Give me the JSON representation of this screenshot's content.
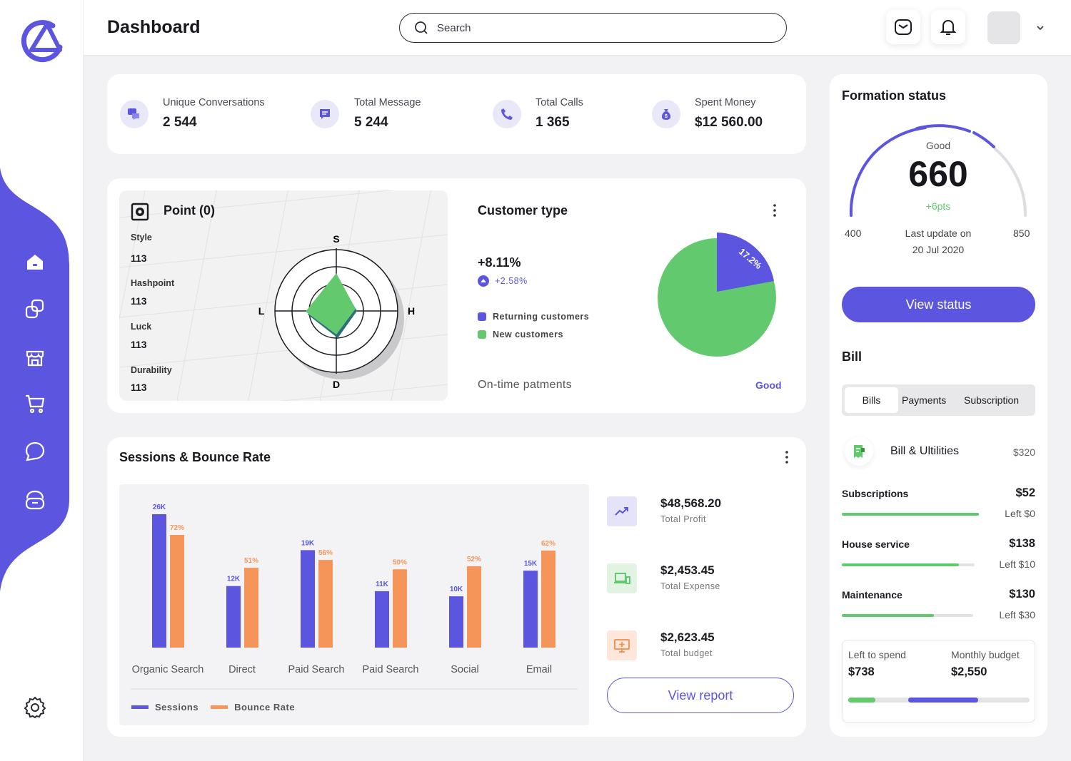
{
  "header": {
    "title": "Dashboard",
    "search_placeholder": "Search"
  },
  "stats": [
    {
      "label": "Unique Conversations",
      "value": "2 544",
      "icon": "chat-bubbles-icon"
    },
    {
      "label": "Total Message",
      "value": "5 244",
      "icon": "message-icon"
    },
    {
      "label": "Total Calls",
      "value": "1 365",
      "icon": "phone-icon"
    },
    {
      "label": "Spent Money",
      "value": "$12 560.00",
      "icon": "money-bag-icon"
    }
  ],
  "point": {
    "title": "Point (0)",
    "attributes": [
      {
        "label": "Style",
        "value": "113"
      },
      {
        "label": "Hashpoint",
        "value": "113"
      },
      {
        "label": "Luck",
        "value": "113"
      },
      {
        "label": "Durability",
        "value": "113"
      }
    ],
    "axes": {
      "top": "S",
      "right": "H",
      "bottom": "D",
      "left": "L"
    }
  },
  "customer_type": {
    "title": "Customer type",
    "growth": "+8.11%",
    "delta": "+2.58%",
    "legend": [
      "Returning customers",
      "New customers"
    ],
    "footer_label": "On-time patments",
    "footer_status": "Good",
    "pie_label": "17.2%",
    "colors": {
      "returning": "#5b55e0",
      "new": "#62c96e"
    }
  },
  "sessions": {
    "title": "Sessions & Bounce Rate",
    "legend": [
      "Sessions",
      "Bounce Rate"
    ],
    "metrics": [
      {
        "value": "$48,568.20",
        "label": "Total Profit",
        "icon": "trend-up-icon"
      },
      {
        "value": "$2,453.45",
        "label": "Total Expense",
        "icon": "devices-icon"
      },
      {
        "value": "$2,623.45",
        "label": "Total budget",
        "icon": "monitor-plus-icon"
      }
    ],
    "report_button": "View report"
  },
  "chart_data": {
    "type": "bar",
    "categories": [
      "Organic Search",
      "Direct",
      "Paid Search",
      "Paid Search",
      "Social",
      "Email"
    ],
    "series": [
      {
        "name": "Sessions",
        "values": [
          26,
          12,
          19,
          11,
          10,
          15
        ],
        "labels": [
          "26K",
          "12K",
          "19K",
          "11K",
          "10K",
          "15K"
        ],
        "color": "#5b55e0"
      },
      {
        "name": "Bounce Rate",
        "values": [
          72,
          51,
          56,
          50,
          52,
          62
        ],
        "labels": [
          "72%",
          "51%",
          "56%",
          "50%",
          "52%",
          "62%"
        ],
        "color": "#f6955a"
      }
    ]
  },
  "formation": {
    "title": "Formation status",
    "status": "Good",
    "score": "660",
    "change": "+6pts",
    "min": "400",
    "max": "850",
    "update_label": "Last update on",
    "update_date": "20 Jul 2020",
    "button": "View status"
  },
  "bill": {
    "title": "Bill",
    "tabs": [
      "Bills",
      "Payments",
      "Subscription"
    ],
    "utilities": {
      "label": "Bill & Ultilities",
      "amount": "$320"
    },
    "rows": [
      {
        "label": "Subscriptions",
        "amount": "$52",
        "left": "Left $0",
        "progress": 1.0
      },
      {
        "label": "House service",
        "amount": "$138",
        "left": "Left $10",
        "progress": 0.88
      },
      {
        "label": "Maintenance",
        "amount": "$130",
        "left": "Left $30",
        "progress": 0.7
      }
    ],
    "budget": {
      "left_label": "Left to spend",
      "left_value": "$738",
      "monthly_label": "Monthly budget",
      "monthly_value": "$2,550"
    }
  }
}
